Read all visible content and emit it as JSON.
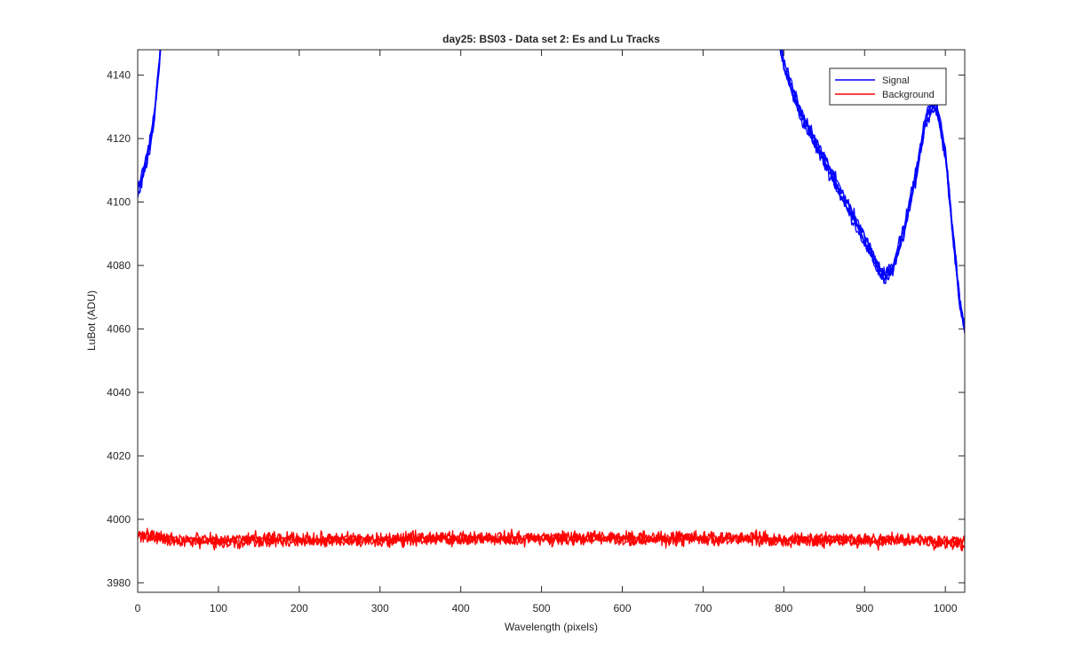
{
  "chart_data": {
    "type": "line",
    "title": "day25: BS03 - Data set 2: Es and Lu Tracks",
    "xlabel": "Wavelength (pixels)",
    "ylabel": "LuBot (ADU)",
    "xlim": [
      0,
      1024
    ],
    "ylim": [
      3977,
      4148
    ],
    "xticks": [
      0,
      100,
      200,
      300,
      400,
      500,
      600,
      700,
      800,
      900,
      1000
    ],
    "yticks": [
      3980,
      4000,
      4020,
      4040,
      4060,
      4080,
      4100,
      4120,
      4140
    ],
    "legend_position": "top-right",
    "grid": false,
    "series": [
      {
        "name": "Signal",
        "color": "#0000ff",
        "x": [
          0,
          5,
          10,
          15,
          20,
          25,
          28,
          30,
          780,
          790,
          800,
          820,
          840,
          860,
          880,
          900,
          915,
          925,
          935,
          950,
          965,
          975,
          985,
          990,
          1000,
          1010,
          1018,
          1024
        ],
        "y": [
          4103,
          4107,
          4112,
          4118,
          4126,
          4138,
          4148,
          4155,
          4168,
          4158,
          4143,
          4128,
          4118,
          4108,
          4098,
          4088,
          4080,
          4076,
          4079,
          4092,
          4110,
          4125,
          4131,
          4129,
          4115,
          4088,
          4068,
          4060
        ]
      },
      {
        "name": "Background",
        "color": "#ff0000",
        "x": [
          0,
          50,
          100,
          150,
          200,
          250,
          300,
          350,
          400,
          450,
          500,
          550,
          600,
          650,
          700,
          750,
          800,
          850,
          900,
          950,
          1000,
          1024
        ],
        "y": [
          3995,
          3993.5,
          3993,
          3993.5,
          3993.5,
          3993.5,
          3993.5,
          3994,
          3994,
          3994,
          3994,
          3994,
          3994,
          3994,
          3994,
          3994,
          3993.5,
          3993.5,
          3993.5,
          3993.5,
          3993,
          3992.5
        ]
      }
    ]
  }
}
